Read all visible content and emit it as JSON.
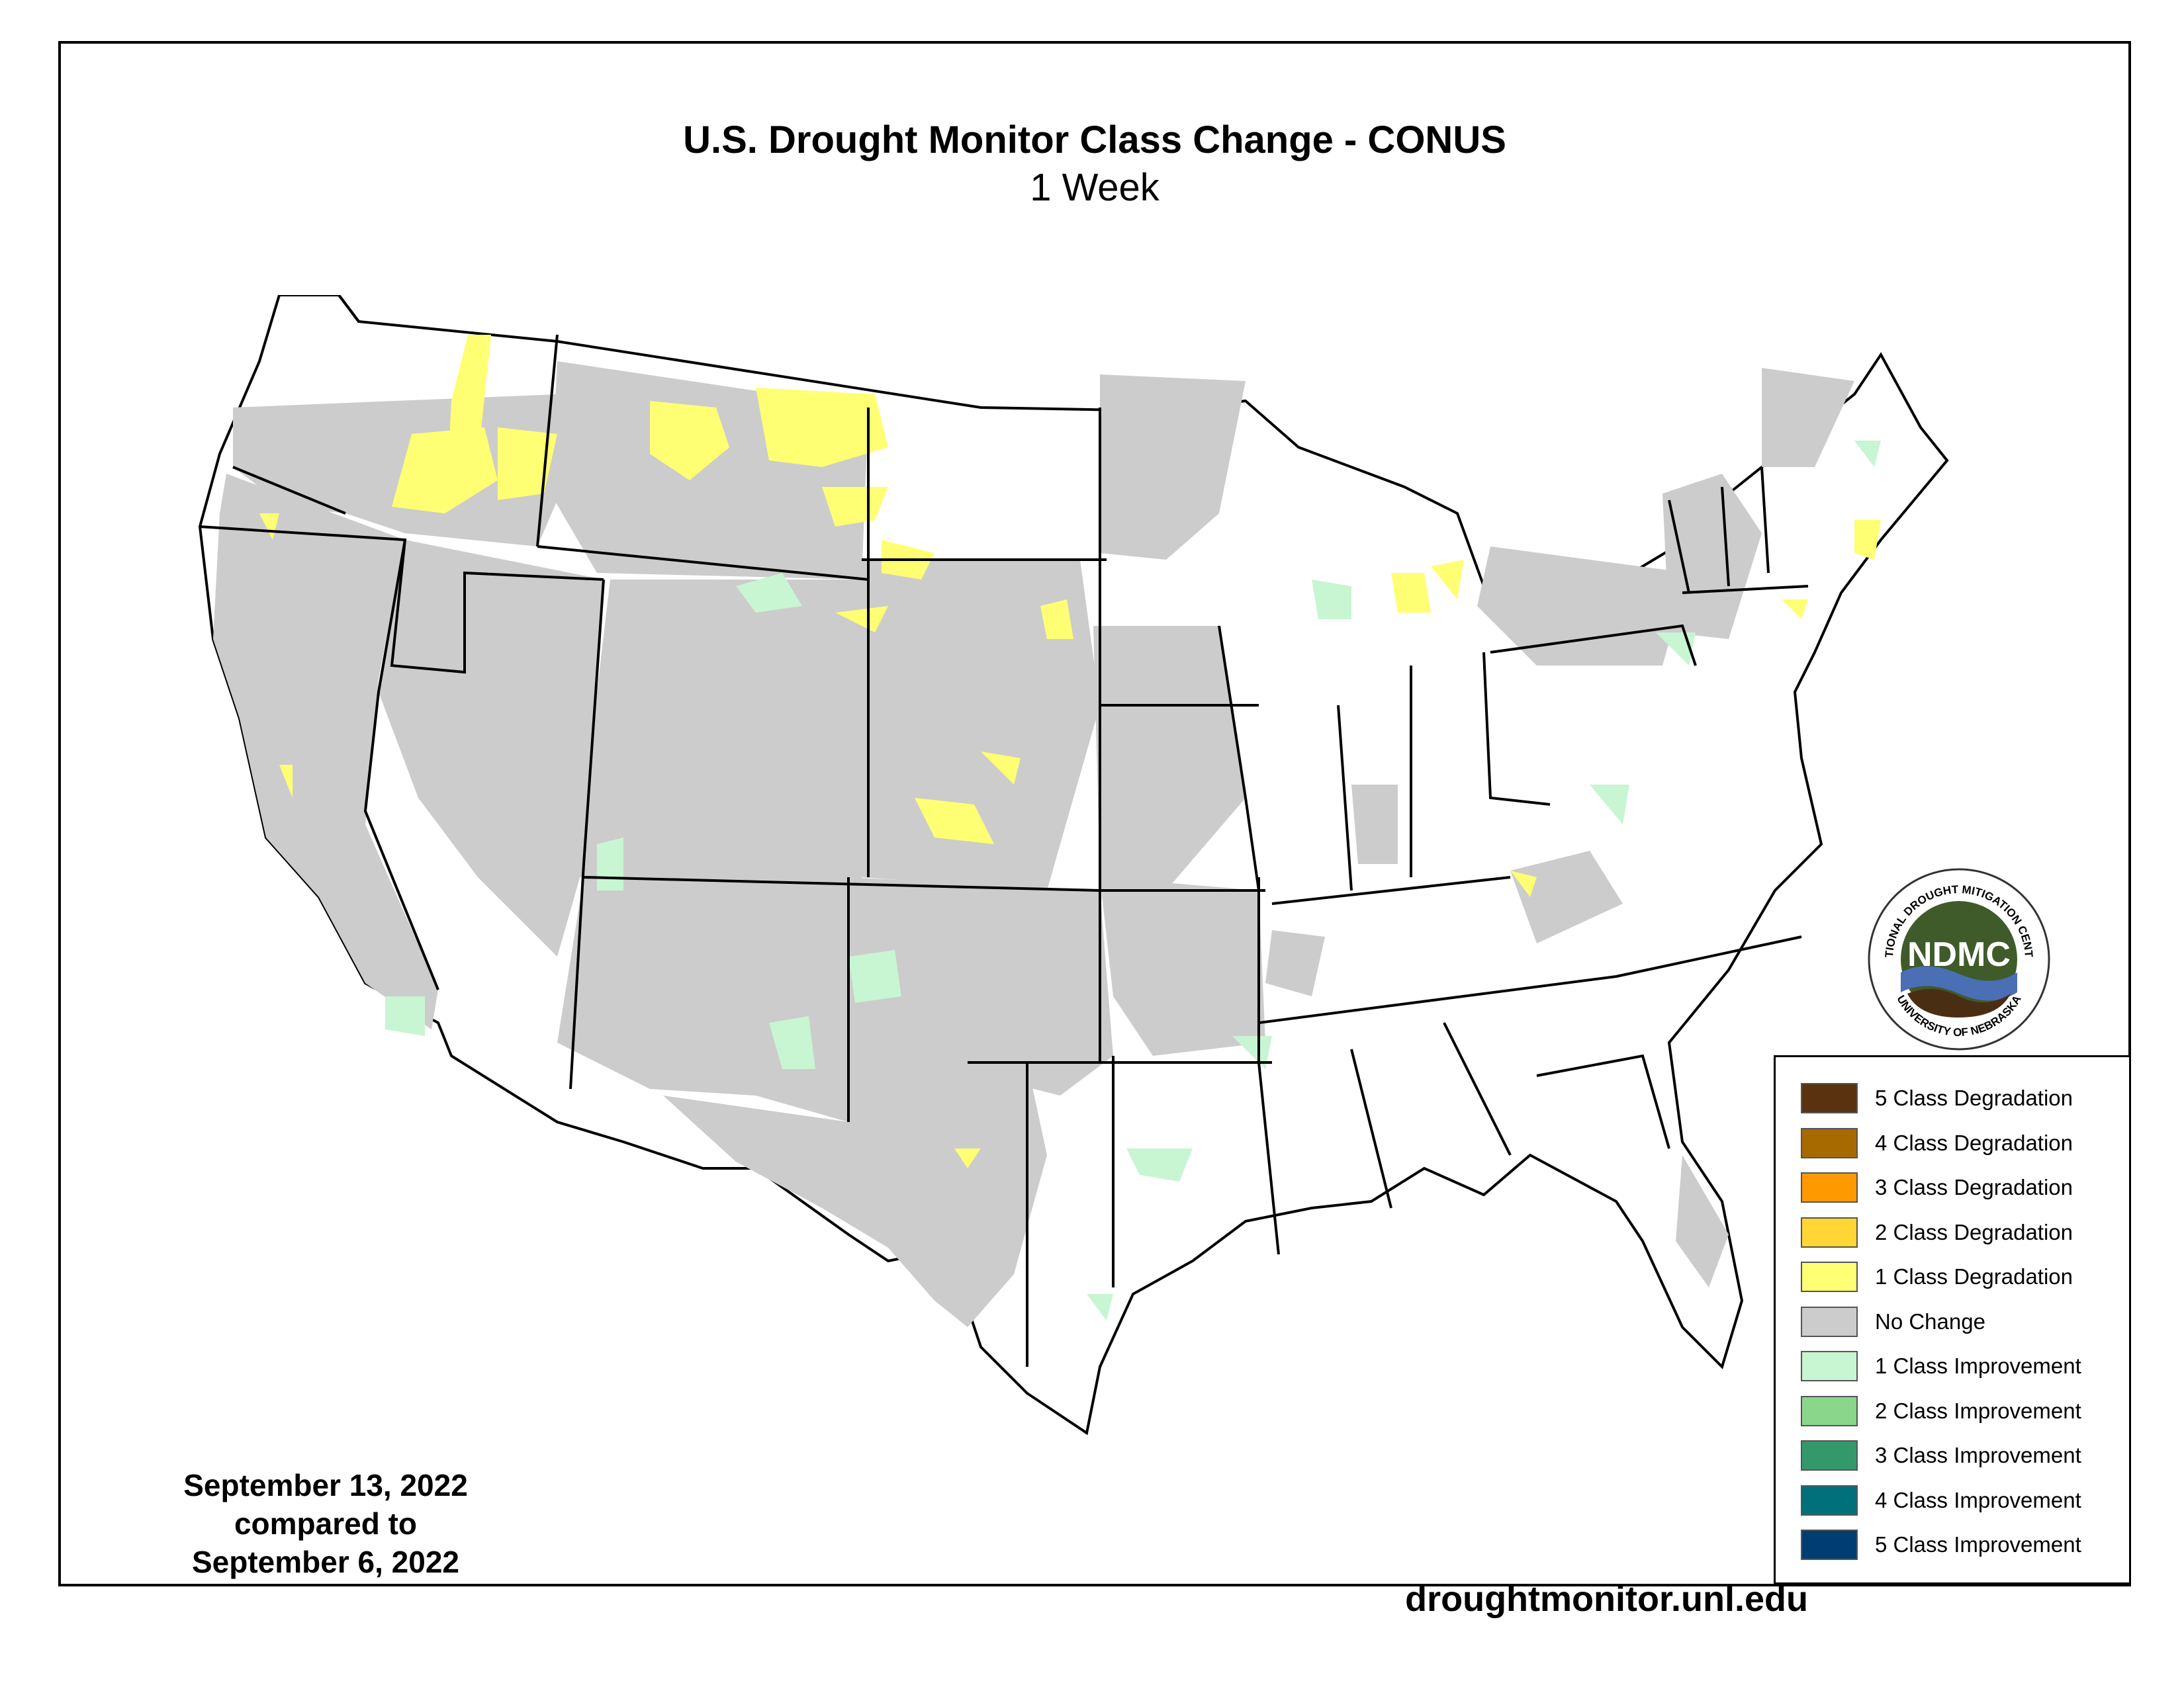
{
  "title": "U.S. Drought Monitor Class Change - CONUS",
  "subtitle": "1 Week",
  "dates": {
    "line1": "September 13, 2022",
    "line2": "compared to",
    "line3": "September 6, 2022"
  },
  "url": "droughtmonitor.unl.edu",
  "logo": {
    "center_text": "NDMC",
    "ring_top": "NATIONAL DROUGHT MITIGATION CENTER",
    "ring_bottom": "UNIVERSITY OF NEBRASKA"
  },
  "legend": [
    {
      "label": "5 Class Degradation",
      "color": "#5a3210"
    },
    {
      "label": "4 Class Degradation",
      "color": "#a66a00"
    },
    {
      "label": "3 Class Degradation",
      "color": "#ff9900"
    },
    {
      "label": "2 Class Degradation",
      "color": "#ffd633"
    },
    {
      "label": "1 Class Degradation",
      "color": "#ffff73"
    },
    {
      "label": "No Change",
      "color": "#cccccc"
    },
    {
      "label": "1 Class Improvement",
      "color": "#c8f5d2"
    },
    {
      "label": "2 Class Improvement",
      "color": "#8ad68a"
    },
    {
      "label": "3 Class Improvement",
      "color": "#33996b"
    },
    {
      "label": "4 Class Improvement",
      "color": "#00707a"
    },
    {
      "label": "5 Class Improvement",
      "color": "#003d73"
    }
  ],
  "colors": {
    "no_change": "#cccccc",
    "degradation_1": "#ffff73",
    "improvement_1": "#c8f5d2",
    "state_lines": "#000000",
    "logo_green": "#3f5b2a",
    "logo_blue": "#4a6fb5",
    "logo_brown": "#4a2e14"
  }
}
